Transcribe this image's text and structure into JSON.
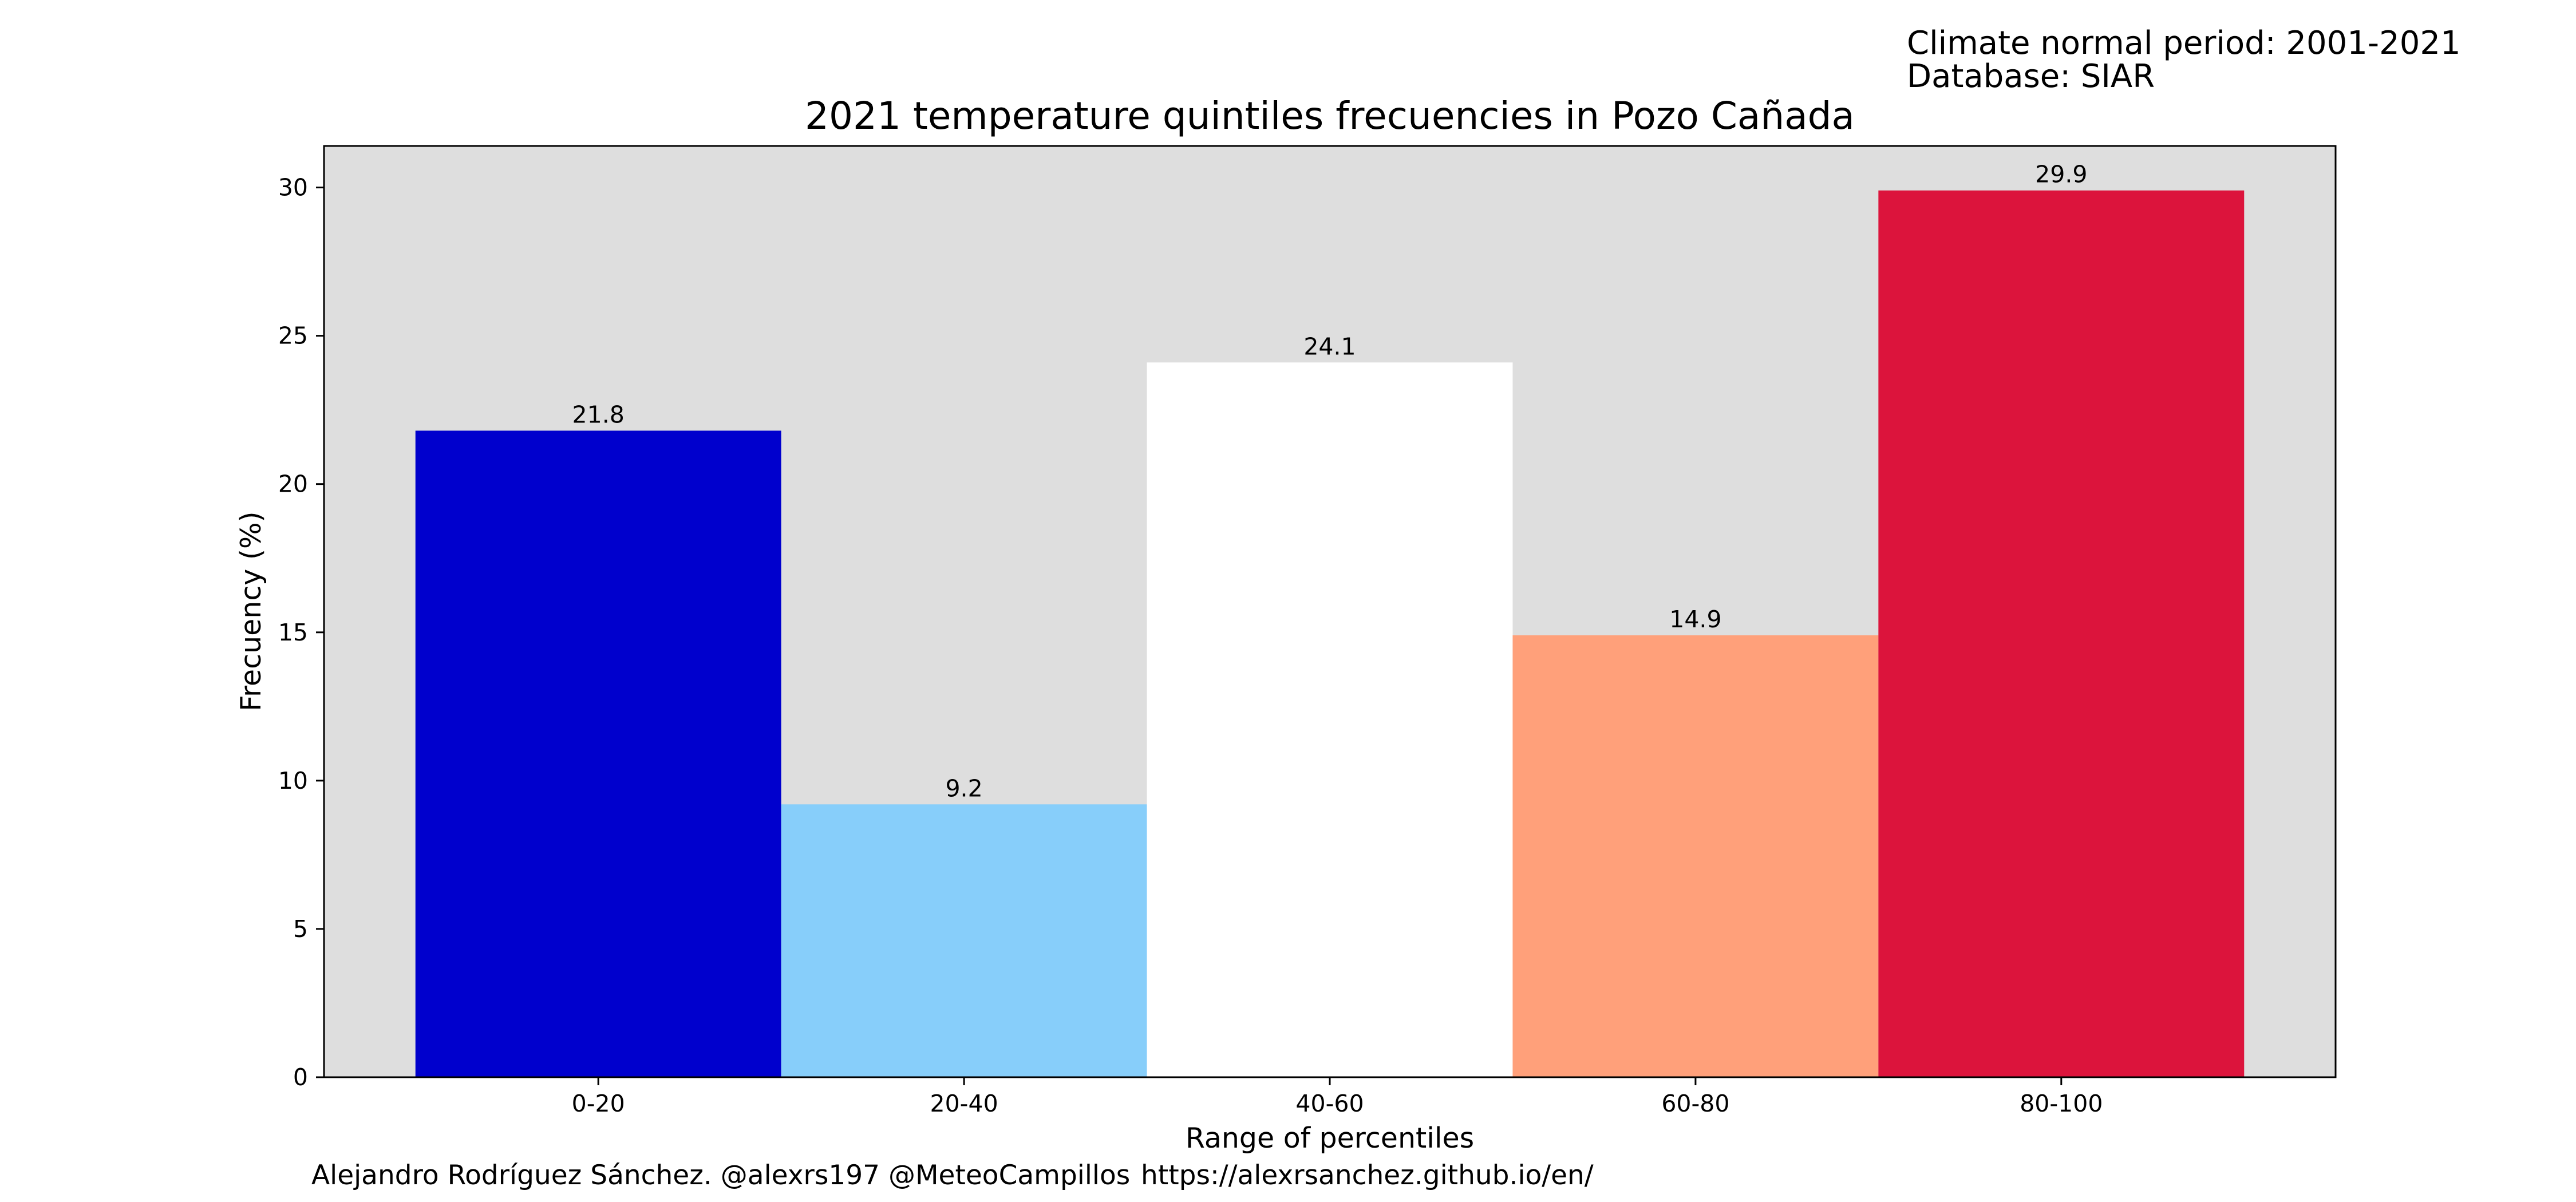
{
  "header": {
    "climate_period": "Climate normal period: 2001-2021",
    "database": "Database: SIAR"
  },
  "footer": {
    "author": "Alejandro Rodríguez Sánchez. @alexrs197 @MeteoCampillos",
    "url": "https://alexrsanchez.github.io/en/"
  },
  "chart_data": {
    "type": "bar",
    "title": "2021 temperature quintiles frecuencies in Pozo Cañada",
    "xlabel": "Range of percentiles",
    "ylabel": "Frecuency (%)",
    "categories": [
      "0-20",
      "20-40",
      "40-60",
      "60-80",
      "80-100"
    ],
    "values": [
      21.8,
      9.2,
      24.1,
      14.9,
      29.9
    ],
    "data_labels": [
      "21.8",
      "9.2",
      "24.1",
      "14.9",
      "29.9"
    ],
    "colors": [
      "#0000cd",
      "#87cefa",
      "#ffffff",
      "#ffa07a",
      "#dc143c"
    ],
    "background_color": "#dedede",
    "ylim": [
      0,
      31.4
    ],
    "yticks": [
      0,
      5,
      10,
      15,
      20,
      25,
      30
    ],
    "grid": false,
    "legend": "none"
  }
}
